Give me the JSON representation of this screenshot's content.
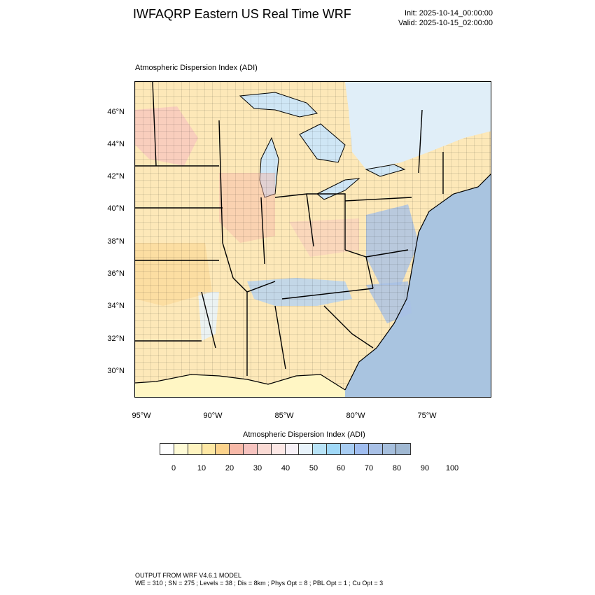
{
  "header": {
    "title": "IWFAQRP Eastern US Real Time WRF",
    "init": "Init: 2025-10-14_00:00:00",
    "valid": "Valid: 2025-10-15_02:00:00"
  },
  "map": {
    "subtitle": "Atmospheric Dispersion Index   (ADI)",
    "lat_labels": [
      "46°N",
      "44°N",
      "42°N",
      "40°N",
      "38°N",
      "36°N",
      "34°N",
      "32°N",
      "30°N"
    ],
    "lon_labels": [
      "95°W",
      "90°W",
      "85°W",
      "80°W",
      "75°W"
    ],
    "colors": {
      "water": "#a9c4e0",
      "land_base": "#fde8b8",
      "lake_light": "#cfe6f5",
      "border": "#000000"
    }
  },
  "colorbar": {
    "title": "Atmospheric Dispersion Index  (ADI)",
    "ticks": [
      "0",
      "10",
      "20",
      "30",
      "40",
      "50",
      "60",
      "70",
      "80",
      "90",
      "100"
    ],
    "colors": [
      "#ffffff",
      "#fffbd6",
      "#fff4c0",
      "#fee8a4",
      "#fcd38c",
      "#f7b9a8",
      "#f6c3bf",
      "#fadad4",
      "#fde8e6",
      "#f7f1f7",
      "#e8f3fb",
      "#b8e3f7",
      "#a0d8f7",
      "#a8cdf2",
      "#a0bdef",
      "#a8c0e6",
      "#a6bfdd",
      "#a0b8d2"
    ]
  },
  "footer": {
    "line1": "OUTPUT FROM WRF V4.6.1 MODEL",
    "line2": "WE = 310 ; SN = 275 ; Levels = 38 ; Dis = 8km ; Phys Opt = 8 ; PBL Opt = 1 ; Cu Opt = 3"
  }
}
